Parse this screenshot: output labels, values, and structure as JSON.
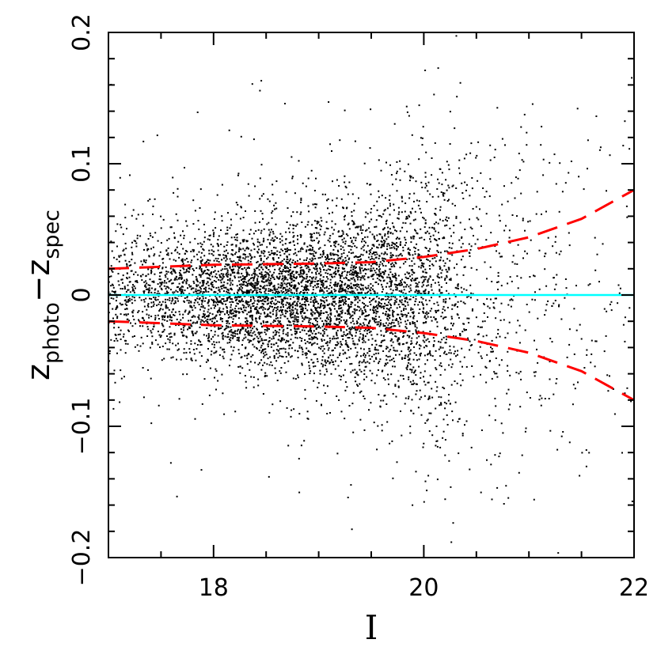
{
  "chart_data": {
    "type": "scatter",
    "xlabel": "I",
    "ylabel": {
      "base1": "z",
      "sub1": "photo",
      "minus": "−",
      "base2": "z",
      "sub2": "spec"
    },
    "xlim": [
      17,
      22
    ],
    "ylim": [
      -0.2,
      0.2
    ],
    "x_ticks": [
      {
        "value": 18,
        "label": "18"
      },
      {
        "value": 20,
        "label": "20"
      },
      {
        "value": 22,
        "label": "22"
      }
    ],
    "y_ticks": [
      {
        "value": -0.2,
        "label": "−0.2"
      },
      {
        "value": -0.1,
        "label": "−0.1"
      },
      {
        "value": 0,
        "label": "0"
      },
      {
        "value": 0.1,
        "label": "0.1"
      },
      {
        "value": 0.2,
        "label": "0.2"
      }
    ],
    "grid": false,
    "series": [
      {
        "type": "scatter",
        "color": "#000000",
        "point_count": 6000,
        "distribution": {
          "density_vs_I": [
            [
              17.0,
              0.3
            ],
            [
              17.5,
              0.45
            ],
            [
              18.0,
              0.75
            ],
            [
              18.5,
              1.0
            ],
            [
              19.0,
              1.0
            ],
            [
              19.5,
              0.95
            ],
            [
              20.0,
              0.75
            ],
            [
              20.2,
              0.55
            ],
            [
              20.5,
              0.22
            ],
            [
              21.0,
              0.12
            ],
            [
              21.5,
              0.08
            ],
            [
              22.0,
              0.05
            ]
          ],
          "scatter_sigma_vs_I": [
            [
              17.0,
              0.025
            ],
            [
              18.0,
              0.025
            ],
            [
              19.0,
              0.03
            ],
            [
              19.5,
              0.035
            ],
            [
              20.0,
              0.045
            ],
            [
              20.5,
              0.06
            ],
            [
              21.0,
              0.07
            ],
            [
              22.0,
              0.08
            ]
          ]
        }
      },
      {
        "type": "line",
        "color": "#00ffff",
        "style": "solid",
        "points": [
          [
            17,
            0
          ],
          [
            22,
            0
          ]
        ]
      },
      {
        "type": "line",
        "color": "#ff0000",
        "style": "dashed",
        "points": [
          [
            17,
            0.02
          ],
          [
            18,
            0.023
          ],
          [
            19,
            0.024
          ],
          [
            19.5,
            0.025
          ],
          [
            20,
            0.029
          ],
          [
            20.5,
            0.035
          ],
          [
            21,
            0.044
          ],
          [
            21.5,
            0.058
          ],
          [
            22,
            0.08
          ]
        ]
      },
      {
        "type": "line",
        "color": "#ff0000",
        "style": "dashed",
        "points": [
          [
            17,
            -0.02
          ],
          [
            18,
            -0.023
          ],
          [
            19,
            -0.024
          ],
          [
            19.5,
            -0.025
          ],
          [
            20,
            -0.029
          ],
          [
            20.5,
            -0.035
          ],
          [
            21,
            -0.044
          ],
          [
            21.5,
            -0.058
          ],
          [
            22,
            -0.08
          ]
        ]
      }
    ]
  }
}
